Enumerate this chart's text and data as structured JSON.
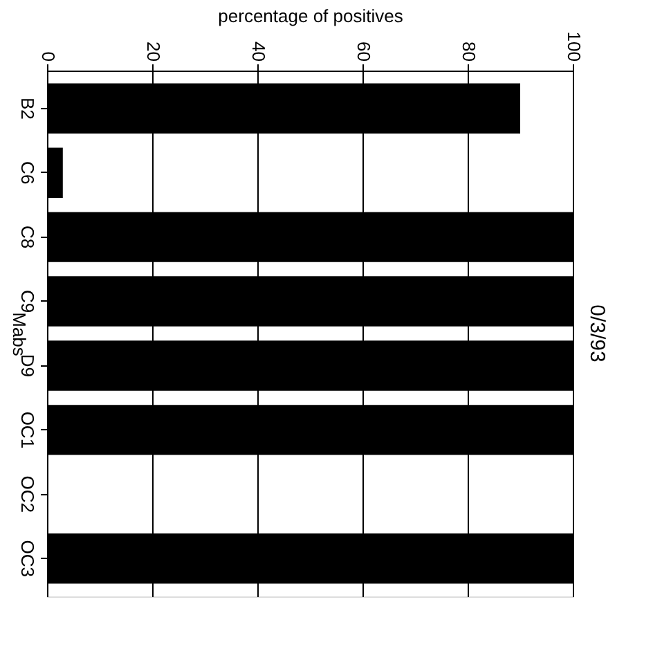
{
  "chart_data": {
    "type": "bar",
    "orientation": "horizontal",
    "title": "0/3/93",
    "xlabel": "percentage of positives",
    "ylabel": "Mabs",
    "categories": [
      "B2",
      "C6",
      "C8",
      "C9",
      "D9",
      "OC1",
      "OC2",
      "OC3"
    ],
    "values": [
      90,
      3,
      100,
      100,
      100,
      100,
      0,
      100
    ],
    "color": "#000000",
    "xlim": [
      0,
      100
    ],
    "xticks": [
      0,
      20,
      40,
      60,
      80,
      100
    ],
    "grid": "x"
  }
}
